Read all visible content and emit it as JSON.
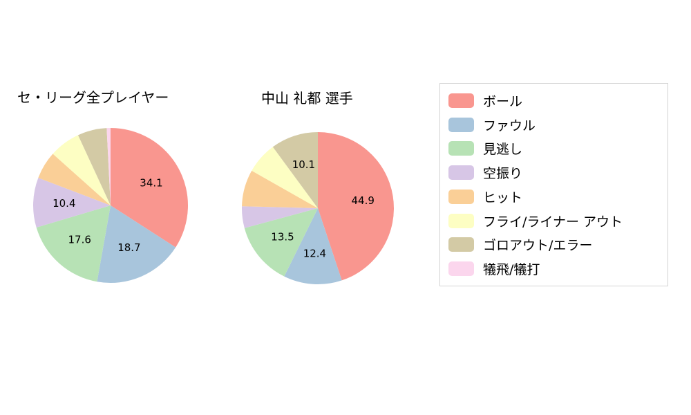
{
  "page": {
    "background": "#ffffff"
  },
  "chart_data": {
    "type": "pie",
    "categories": [
      "ボール",
      "ファウル",
      "見逃し",
      "空振り",
      "ヒット",
      "フライ/ライナー アウト",
      "ゴロアウト/エラー",
      "犠飛/犠打"
    ],
    "colors": [
      "#F9968F",
      "#A8C5DC",
      "#B7E2B5",
      "#D7C6E6",
      "#FACF97",
      "#FDFEC3",
      "#D3CAA5",
      "#FBD6ED"
    ],
    "start_angle_deg": -90,
    "direction": "clockwise",
    "value_label_threshold": 10,
    "legend_position": "right",
    "grid": false,
    "charts": [
      {
        "title": "セ・リーグ全プレイヤー",
        "values": [
          34.1,
          18.7,
          17.6,
          10.4,
          5.8,
          6.5,
          6.1,
          0.8
        ],
        "labeled_values": [
          34.1,
          18.7,
          17.6,
          10.4
        ]
      },
      {
        "title": "中山 礼都 選手",
        "values": [
          44.9,
          12.4,
          13.5,
          4.6,
          7.8,
          6.7,
          10.1,
          0
        ],
        "labeled_values": [
          44.9,
          12.4,
          13.5,
          10.1
        ]
      }
    ]
  }
}
